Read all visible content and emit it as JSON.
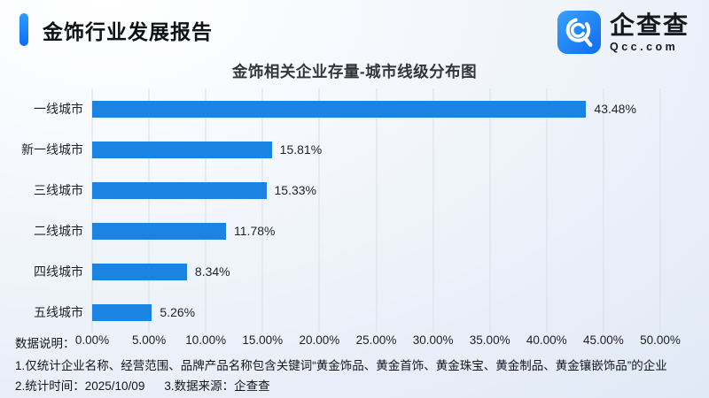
{
  "page": {
    "report_title": "金饰行业发展报告"
  },
  "logo": {
    "name": "企查查",
    "domain": "Qcc.com"
  },
  "chart_data": {
    "type": "bar",
    "orientation": "horizontal",
    "title": "金饰相关企业存量-城市线级分布图",
    "categories": [
      "一线城市",
      "新一线城市",
      "三线城市",
      "二线城市",
      "四线城市",
      "五线城市"
    ],
    "values": [
      43.48,
      15.81,
      15.33,
      11.78,
      8.34,
      5.26
    ],
    "value_labels": [
      "43.48%",
      "15.81%",
      "15.33%",
      "11.78%",
      "8.34%",
      "5.26%"
    ],
    "xlim": [
      0,
      50
    ],
    "x_ticks": [
      "0.00%",
      "5.00%",
      "10.00%",
      "15.00%",
      "20.00%",
      "25.00%",
      "30.00%",
      "35.00%",
      "40.00%",
      "45.00%",
      "50.00%"
    ],
    "grid": true,
    "legend": false,
    "bar_color": "#1b84e3"
  },
  "footer": {
    "label": "数据说明：",
    "note1": "1.仅统计企业名称、经营范围、品牌产品名称包含关键词“黄金饰品、黄金首饰、黄金珠宝、黄金制品、黄金镶嵌饰品”的企业",
    "note2_time": "2.统计时间：2025/10/09",
    "note2_source": "3.数据来源：企查查"
  },
  "colors": {
    "bar": "#1b84e3",
    "accent_top": "#2f9bff",
    "accent_bottom": "#0d6ef0",
    "grid": "#d9deea",
    "text": "#1c1e24"
  }
}
